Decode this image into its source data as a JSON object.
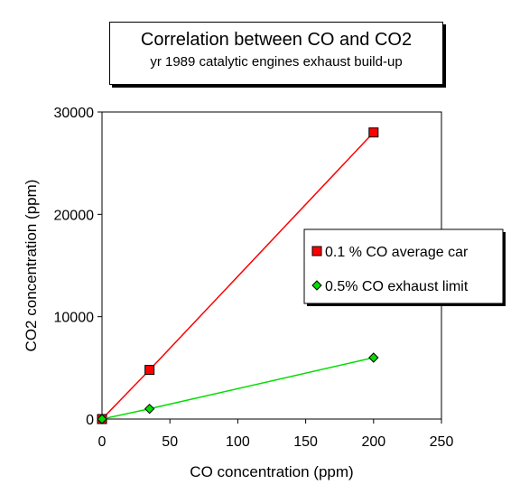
{
  "chart_data": {
    "type": "scatter",
    "title": "Correlation between CO and CO2",
    "subtitle": "yr 1989 catalytic engines exhaust build-up",
    "xlabel": "CO concentration (ppm)",
    "ylabel": "CO2 concentration (ppm)",
    "xlim": [
      0,
      250
    ],
    "ylim": [
      0,
      30000
    ],
    "x_ticks": [
      0,
      50,
      100,
      150,
      200,
      250
    ],
    "y_ticks": [
      0,
      10000,
      20000,
      30000
    ],
    "grid": false,
    "legend_position": "right",
    "series": [
      {
        "name": "0.1 % CO average car",
        "color": "#ff0000",
        "marker": "square",
        "points": [
          {
            "x": 0,
            "y": 0
          },
          {
            "x": 35,
            "y": 4800
          },
          {
            "x": 200,
            "y": 28000
          }
        ]
      },
      {
        "name": "0.5% CO exhaust limit",
        "color": "#00dd00",
        "marker": "diamond",
        "points": [
          {
            "x": 0,
            "y": 0
          },
          {
            "x": 35,
            "y": 1000
          },
          {
            "x": 200,
            "y": 6000
          }
        ]
      }
    ]
  }
}
